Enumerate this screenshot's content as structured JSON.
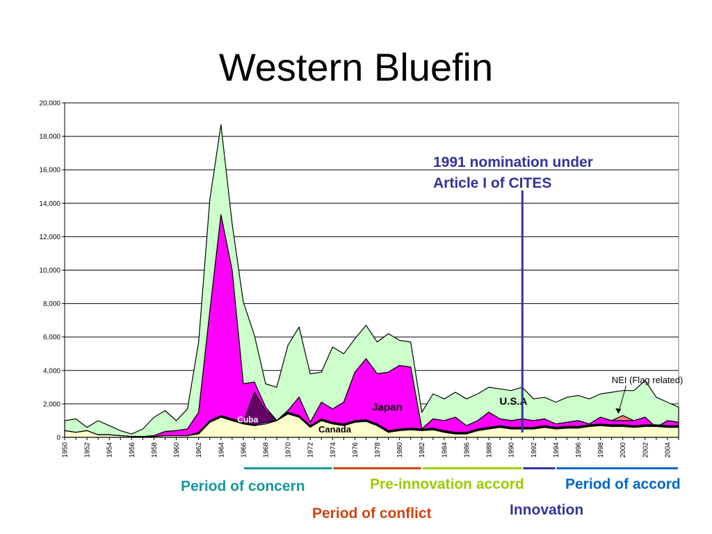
{
  "title": "Western Bluefin",
  "chart_data": {
    "type": "area",
    "stacked": true,
    "xlabel": "",
    "ylabel": "",
    "ylim": [
      0,
      20000
    ],
    "yticks": [
      "0",
      "2,000",
      "4,000",
      "6,000",
      "8,000",
      "10,000",
      "12,000",
      "14,000",
      "16,000",
      "18,000",
      "20,000"
    ],
    "grid": true,
    "x": [
      1950,
      1951,
      1952,
      1953,
      1954,
      1955,
      1956,
      1957,
      1958,
      1959,
      1960,
      1961,
      1962,
      1963,
      1964,
      1965,
      1966,
      1967,
      1968,
      1969,
      1970,
      1971,
      1972,
      1973,
      1974,
      1975,
      1976,
      1977,
      1978,
      1979,
      1980,
      1981,
      1982,
      1983,
      1984,
      1985,
      1986,
      1987,
      1988,
      1989,
      1990,
      1991,
      1992,
      1993,
      1994,
      1995,
      1996,
      1997,
      1998,
      1999,
      2000,
      2001,
      2002,
      2003,
      2004,
      2005
    ],
    "xticks": [
      "1950",
      "1952",
      "1954",
      "1956",
      "1958",
      "1960",
      "1962",
      "1964",
      "1966",
      "1968",
      "1970",
      "1972",
      "1974",
      "1976",
      "1978",
      "1980",
      "1982",
      "1984",
      "1986",
      "1988",
      "1990",
      "1992",
      "1994",
      "1996",
      "1998",
      "2000",
      "2002",
      "2004"
    ],
    "cumulative_totals": [
      [
        400,
        300,
        400,
        150,
        150,
        100,
        50,
        50,
        50,
        100,
        100,
        100,
        200,
        900,
        1200,
        1000,
        800,
        700,
        800,
        1000,
        1400,
        1200,
        600,
        1000,
        800,
        700,
        900,
        950,
        700,
        300,
        400,
        450,
        400,
        450,
        300,
        200,
        200,
        400,
        500,
        600,
        500,
        500,
        500,
        600,
        500,
        550,
        550,
        650,
        700,
        650,
        650,
        600,
        650,
        650,
        600,
        600
      ],
      [
        400,
        300,
        400,
        150,
        150,
        100,
        50,
        50,
        50,
        100,
        100,
        100,
        250,
        950,
        1250,
        1050,
        850,
        750,
        900,
        1000,
        1450,
        1250,
        650,
        1050,
        850,
        750,
        950,
        1000,
        750,
        350,
        450,
        500,
        450,
        500,
        350,
        250,
        250,
        450,
        550,
        650,
        550,
        550,
        550,
        650,
        550,
        600,
        600,
        700,
        750,
        700,
        700,
        650,
        700,
        700,
        650,
        650
      ],
      [
        400,
        300,
        400,
        150,
        150,
        100,
        50,
        50,
        50,
        100,
        100,
        100,
        300,
        1000,
        1300,
        1100,
        900,
        2700,
        1600,
        1000,
        1500,
        1300,
        700,
        1100,
        900,
        800,
        1000,
        1050,
        800,
        400,
        500,
        550,
        500,
        550,
        400,
        300,
        300,
        500,
        600,
        700,
        600,
        600,
        600,
        700,
        600,
        650,
        650,
        750,
        800,
        750,
        750,
        700,
        750,
        750,
        700,
        700
      ],
      [
        400,
        300,
        400,
        150,
        150,
        100,
        50,
        50,
        100,
        350,
        400,
        500,
        1500,
        7500,
        13300,
        10000,
        3200,
        3300,
        1800,
        1000,
        1600,
        2400,
        900,
        2100,
        1700,
        2100,
        3900,
        4700,
        3800,
        3900,
        4300,
        4200,
        500,
        1100,
        1000,
        1200,
        700,
        1000,
        1500,
        1100,
        1000,
        1100,
        1000,
        1100,
        800,
        900,
        1000,
        800,
        1200,
        1000,
        1000,
        1000,
        1200,
        600,
        1000,
        900
      ],
      [
        400,
        300,
        400,
        150,
        150,
        100,
        50,
        50,
        100,
        350,
        400,
        500,
        1500,
        7500,
        13300,
        10000,
        3200,
        3300,
        1800,
        1000,
        1600,
        2400,
        900,
        2100,
        1700,
        2100,
        3900,
        4700,
        3800,
        3900,
        4300,
        4200,
        500,
        1100,
        1000,
        1200,
        700,
        1000,
        1500,
        1100,
        1000,
        1100,
        1000,
        1100,
        800,
        900,
        1000,
        800,
        1200,
        1000,
        1300,
        1000,
        1200,
        600,
        1000,
        900
      ],
      [
        1000,
        1100,
        600,
        1000,
        700,
        400,
        200,
        500,
        1200,
        1600,
        1000,
        1700,
        5700,
        14200,
        18700,
        12800,
        8100,
        6100,
        3200,
        3000,
        5500,
        6600,
        3800,
        3900,
        5400,
        5000,
        5900,
        6700,
        5700,
        6200,
        5800,
        5700,
        1500,
        2600,
        2300,
        2700,
        2300,
        2600,
        3000,
        2900,
        2800,
        3000,
        2300,
        2400,
        2100,
        2400,
        2500,
        2300,
        2600,
        2700,
        2800,
        2800,
        3400,
        2400,
        2100,
        1800
      ]
    ],
    "series": [
      {
        "name": "Canada",
        "color": "#ffffcc"
      },
      {
        "name": "U.S.A",
        "color": "#9999ff"
      },
      {
        "name": "Cuba",
        "color": "#660066"
      },
      {
        "name": "Japan",
        "color": "#ff00ff"
      },
      {
        "name": "NEI (Flag related)",
        "color": "#ff8080"
      },
      {
        "name": "",
        "color": "#ccffcc"
      }
    ],
    "annotation": {
      "lines": [
        "1991 nomination under",
        "Article I of CITES"
      ],
      "x": 1991,
      "color": "#333399"
    }
  },
  "periods": [
    {
      "label": "Period of concern",
      "start": 1966,
      "end": 1974,
      "color": "#159a9a"
    },
    {
      "label": "Period of conflict",
      "start": 1974,
      "end": 1982,
      "color": "#cc4411"
    },
    {
      "label": "Pre-innovation accord",
      "start": 1982,
      "end": 1991,
      "color": "#99cc00"
    },
    {
      "label": "Innovation",
      "start": 1991,
      "end": 1994,
      "color": "#333399"
    },
    {
      "label": "Period of accord",
      "start": 1994,
      "end": 2005,
      "color": "#0066cc"
    }
  ]
}
